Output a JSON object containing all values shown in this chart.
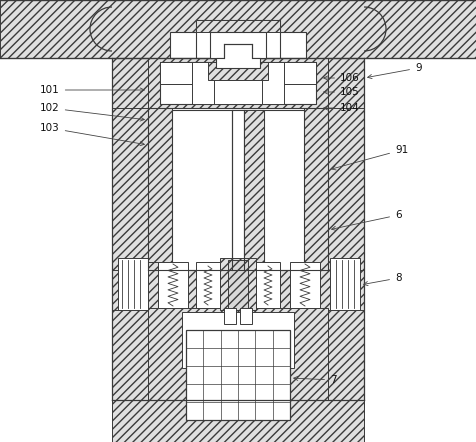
{
  "fig_w": 4.76,
  "fig_h": 4.42,
  "dpi": 100,
  "bg": "#ffffff",
  "lc": "#3a3a3a",
  "hc": "#d8d8d8",
  "hatch": "////",
  "lw_main": 0.7
}
